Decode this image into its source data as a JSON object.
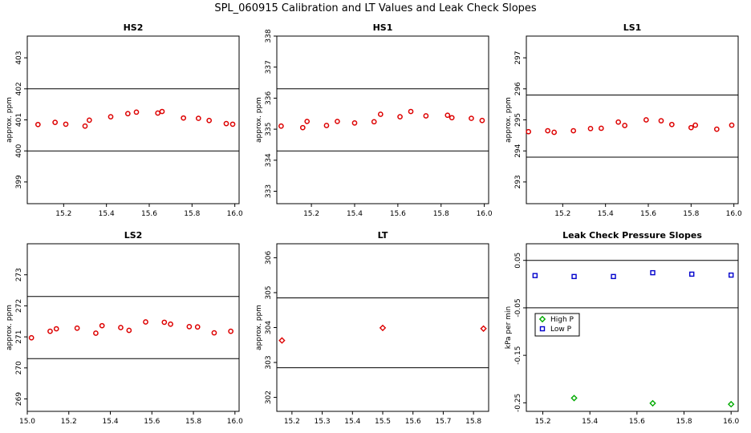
{
  "figure_title": "SPL_060915  Calibration and LT Values and Leak Check Slopes",
  "chart_data": [
    {
      "type": "scatter",
      "title": "HS2",
      "xlabel": "",
      "ylabel": "approx. ppm",
      "xlim": [
        15.03,
        16.02
      ],
      "ylim": [
        398.3,
        403.7
      ],
      "xticks": [
        15.2,
        15.4,
        15.6,
        15.8,
        16.0
      ],
      "xtick_labels": [
        "15.2",
        "15.4",
        "15.6",
        "15.8",
        "16.0"
      ],
      "yticks": [
        399,
        400,
        401,
        402,
        403
      ],
      "ytick_labels": [
        "399",
        "400",
        "401",
        "402",
        "403"
      ],
      "hlines": [
        400.0,
        402.0
      ],
      "series": [
        {
          "color": "#dd0000",
          "marker": "circle",
          "x": [
            15.08,
            15.16,
            15.21,
            15.3,
            15.32,
            15.42,
            15.5,
            15.54,
            15.64,
            15.66,
            15.76,
            15.83,
            15.88,
            15.96,
            15.99
          ],
          "y": [
            400.85,
            400.92,
            400.86,
            400.8,
            400.99,
            401.1,
            401.2,
            401.25,
            401.22,
            401.27,
            401.06,
            401.05,
            400.98,
            400.88,
            400.86
          ]
        }
      ]
    },
    {
      "type": "scatter",
      "title": "HS1",
      "xlabel": "",
      "ylabel": "approx. ppm",
      "xlim": [
        15.04,
        16.02
      ],
      "ylim": [
        332.6,
        338.0
      ],
      "xticks": [
        15.2,
        15.4,
        15.6,
        15.8,
        16.0
      ],
      "xtick_labels": [
        "15.2",
        "15.4",
        "15.6",
        "15.8",
        "16.0"
      ],
      "yticks": [
        333,
        334,
        335,
        336,
        337,
        338
      ],
      "ytick_labels": [
        "333",
        "334",
        "335",
        "336",
        "337",
        "338"
      ],
      "hlines": [
        334.3,
        336.3
      ],
      "series": [
        {
          "color": "#dd0000",
          "marker": "circle",
          "x": [
            15.06,
            15.16,
            15.18,
            15.27,
            15.32,
            15.4,
            15.49,
            15.52,
            15.61,
            15.66,
            15.73,
            15.83,
            15.85,
            15.94,
            15.99
          ],
          "y": [
            335.1,
            335.05,
            335.25,
            335.12,
            335.25,
            335.2,
            335.24,
            335.48,
            335.4,
            335.57,
            335.43,
            335.45,
            335.37,
            335.35,
            335.28
          ]
        }
      ]
    },
    {
      "type": "scatter",
      "title": "LS1",
      "xlabel": "",
      "ylabel": "approx. ppm",
      "xlim": [
        15.03,
        16.02
      ],
      "ylim": [
        292.3,
        297.7
      ],
      "xticks": [
        15.2,
        15.4,
        15.6,
        15.8,
        16.0
      ],
      "xtick_labels": [
        "15.2",
        "15.4",
        "15.6",
        "15.8",
        "16.0"
      ],
      "yticks": [
        293,
        294,
        295,
        296,
        297
      ],
      "ytick_labels": [
        "293",
        "294",
        "295",
        "296",
        "297"
      ],
      "hlines": [
        293.8,
        295.8
      ],
      "series": [
        {
          "color": "#dd0000",
          "marker": "circle",
          "x": [
            15.04,
            15.13,
            15.16,
            15.25,
            15.33,
            15.38,
            15.46,
            15.49,
            15.59,
            15.66,
            15.71,
            15.8,
            15.82,
            15.92,
            15.99
          ],
          "y": [
            294.62,
            294.65,
            294.6,
            294.65,
            294.72,
            294.73,
            294.93,
            294.82,
            295.0,
            294.97,
            294.85,
            294.75,
            294.83,
            294.7,
            294.83
          ]
        }
      ]
    },
    {
      "type": "scatter",
      "title": "LS2",
      "xlabel": "",
      "ylabel": "approx. ppm",
      "xlim": [
        15.0,
        16.02
      ],
      "ylim": [
        268.6,
        274.0
      ],
      "xticks": [
        15.0,
        15.2,
        15.4,
        15.6,
        15.8,
        16.0
      ],
      "xtick_labels": [
        "15.0",
        "15.2",
        "15.4",
        "15.6",
        "15.8",
        "16.0"
      ],
      "yticks": [
        269,
        270,
        271,
        272,
        273
      ],
      "ytick_labels": [
        "269",
        "270",
        "271",
        "272",
        "273"
      ],
      "hlines": [
        270.3,
        272.3
      ],
      "series": [
        {
          "color": "#dd0000",
          "marker": "circle",
          "x": [
            15.02,
            15.11,
            15.14,
            15.24,
            15.33,
            15.36,
            15.45,
            15.49,
            15.57,
            15.66,
            15.69,
            15.78,
            15.82,
            15.9,
            15.98
          ],
          "y": [
            270.97,
            271.18,
            271.26,
            271.28,
            271.12,
            271.36,
            271.3,
            271.21,
            271.48,
            271.47,
            271.41,
            271.33,
            271.32,
            271.13,
            271.18
          ]
        }
      ]
    },
    {
      "type": "scatter",
      "title": "LT",
      "xlabel": "",
      "ylabel": "approx. ppm",
      "xlim": [
        15.15,
        15.85
      ],
      "ylim": [
        301.6,
        306.4
      ],
      "xticks": [
        15.2,
        15.3,
        15.4,
        15.5,
        15.6,
        15.7,
        15.8
      ],
      "xtick_labels": [
        "15.2",
        "15.3",
        "15.4",
        "15.5",
        "15.6",
        "15.7",
        "15.8"
      ],
      "yticks": [
        302,
        303,
        304,
        305,
        306
      ],
      "ytick_labels": [
        "302",
        "303",
        "304",
        "305",
        "306"
      ],
      "hlines": [
        302.85,
        304.85
      ],
      "series": [
        {
          "color": "#dd0000",
          "marker": "diamond",
          "x": [
            15.167,
            15.5,
            15.833
          ],
          "y": [
            303.63,
            303.99,
            303.97
          ]
        }
      ]
    },
    {
      "type": "scatter",
      "title": "Leak Check Pressure Slopes",
      "xlabel": "",
      "ylabel": "kPa per min",
      "xlim": [
        15.13,
        16.03
      ],
      "ylim": [
        -0.268,
        0.085
      ],
      "xticks": [
        15.2,
        15.4,
        15.6,
        15.8,
        16.0
      ],
      "xtick_labels": [
        "15.2",
        "15.4",
        "15.6",
        "15.8",
        "16.0"
      ],
      "yticks": [
        -0.25,
        -0.15,
        -0.05,
        0.05
      ],
      "ytick_labels": [
        "-0.25",
        "-0.15",
        "-0.05",
        "0.05"
      ],
      "hlines": [
        0.05,
        -0.05
      ],
      "legend": {
        "position": "left",
        "entries": [
          "High P",
          "Low P"
        ]
      },
      "series": [
        {
          "name": "High P",
          "color": "#00aa00",
          "marker": "diamond",
          "x": [
            15.333,
            15.667,
            16.0
          ],
          "y": [
            -0.24,
            -0.251,
            -0.253
          ]
        },
        {
          "name": "Low P",
          "color": "#0000cc",
          "marker": "square",
          "x": [
            15.167,
            15.333,
            15.5,
            15.667,
            15.833,
            16.0
          ],
          "y": [
            0.018,
            0.016,
            0.016,
            0.024,
            0.021,
            0.019
          ]
        }
      ]
    }
  ]
}
